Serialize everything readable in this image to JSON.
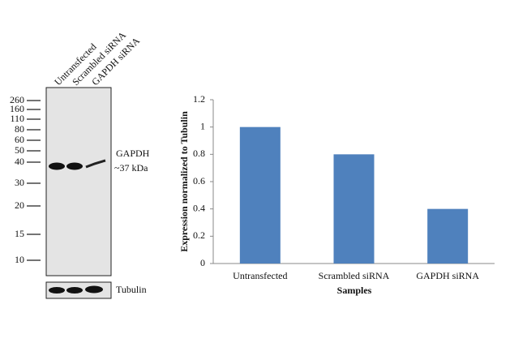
{
  "blot": {
    "lanes": [
      "Untransfected",
      "Scrambled siRNA",
      "GAPDH siRNA"
    ],
    "markers": [
      260,
      160,
      110,
      80,
      60,
      50,
      40,
      30,
      20,
      15,
      10
    ],
    "band_label": "GAPDH",
    "band_size": "~37 kDa",
    "loading_control": "Tubulin"
  },
  "chart_data": {
    "type": "bar",
    "categories": [
      "Untransfected",
      "Scrambled siRNA",
      "GAPDH siRNA"
    ],
    "values": [
      1.0,
      0.8,
      0.4
    ],
    "color": "#4f81bd",
    "ylim": [
      0,
      1.2
    ],
    "yticks": [
      0,
      0.2,
      0.4,
      0.6,
      0.8,
      1,
      1.2
    ],
    "y_label": "Expression normalized to Tubulin",
    "x_label": "Samples"
  }
}
